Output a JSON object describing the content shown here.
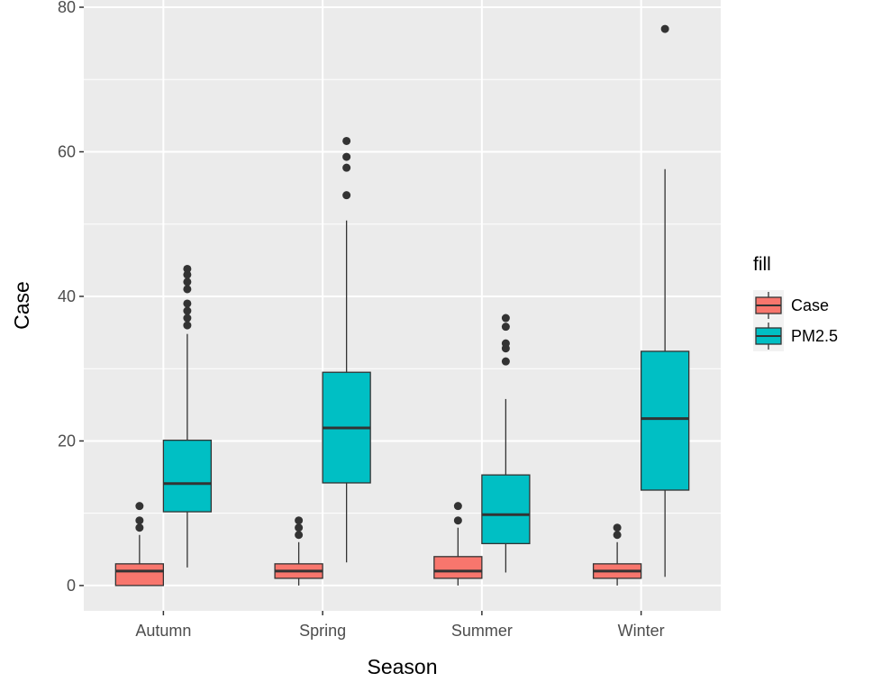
{
  "chart_data": {
    "type": "box",
    "xlabel": "Season",
    "ylabel": "Case",
    "categories": [
      "Autumn",
      "Spring",
      "Summer",
      "Winter"
    ],
    "ylim": [
      -3.5,
      81
    ],
    "yticks": [
      0,
      20,
      40,
      60,
      80
    ],
    "grid": true,
    "legend": {
      "title": "fill",
      "position": "right"
    },
    "series": [
      {
        "name": "Case",
        "color": "#F8766D",
        "boxes": [
          {
            "category": "Autumn",
            "min": 0,
            "q1": 0,
            "median": 2,
            "q3": 3,
            "max": 7,
            "outliers": [
              8,
              9,
              11
            ]
          },
          {
            "category": "Spring",
            "min": 0,
            "q1": 1,
            "median": 2,
            "q3": 3,
            "max": 6,
            "outliers": [
              7,
              8,
              9
            ]
          },
          {
            "category": "Summer",
            "min": 0,
            "q1": 1,
            "median": 2,
            "q3": 4,
            "max": 8,
            "outliers": [
              9,
              11
            ]
          },
          {
            "category": "Winter",
            "min": 0,
            "q1": 1,
            "median": 2,
            "q3": 3,
            "max": 6,
            "outliers": [
              7,
              8
            ]
          }
        ]
      },
      {
        "name": "PM2.5",
        "color": "#00BFC4",
        "boxes": [
          {
            "category": "Autumn",
            "min": 2.5,
            "q1": 10.2,
            "median": 14.1,
            "q3": 20.1,
            "max": 34.8,
            "outliers": [
              36,
              37,
              38,
              39,
              41,
              42,
              43,
              43.8
            ]
          },
          {
            "category": "Spring",
            "min": 3.2,
            "q1": 14.2,
            "median": 21.8,
            "q3": 29.5,
            "max": 50.5,
            "outliers": [
              54,
              57.8,
              59.3,
              61.5
            ]
          },
          {
            "category": "Summer",
            "min": 1.8,
            "q1": 5.8,
            "median": 9.8,
            "q3": 15.3,
            "max": 25.8,
            "outliers": [
              31,
              32.8,
              33.5,
              35.8,
              37
            ]
          },
          {
            "category": "Winter",
            "min": 1.2,
            "q1": 13.2,
            "median": 23.1,
            "q3": 32.4,
            "max": 57.6,
            "outliers": [
              77
            ]
          }
        ]
      }
    ]
  }
}
